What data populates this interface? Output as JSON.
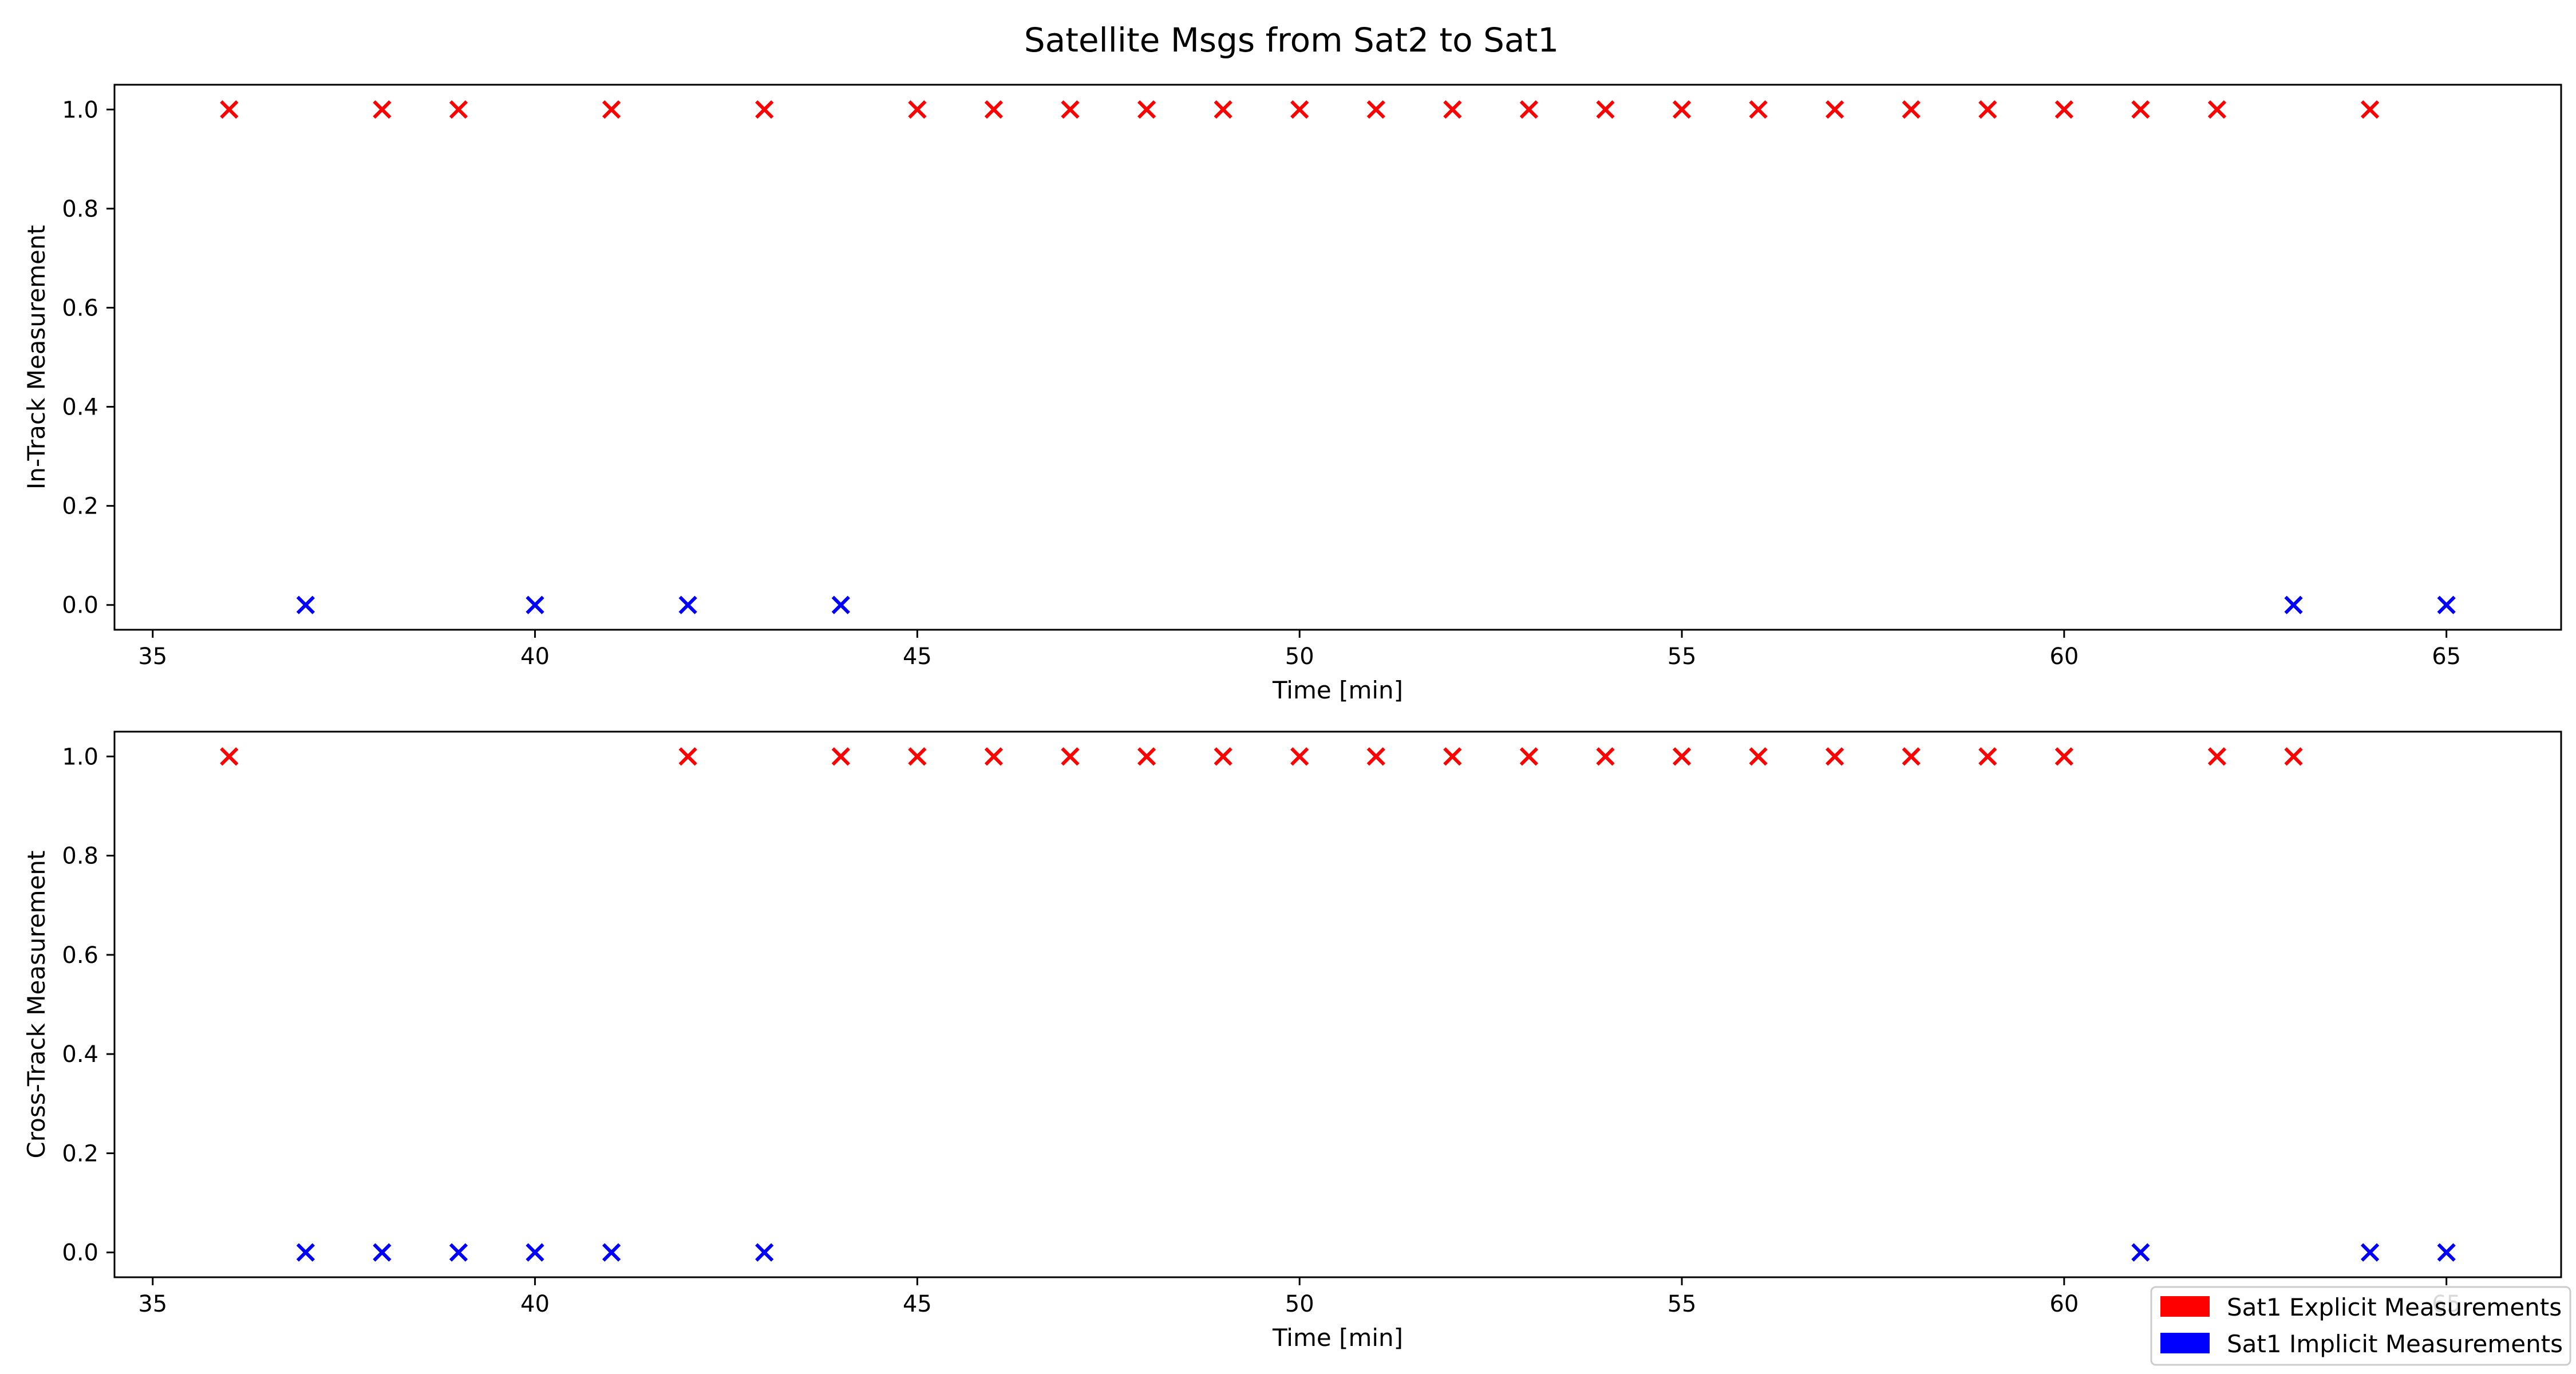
{
  "figure": {
    "title": "Satellite Msgs from Sat2 to Sat1"
  },
  "legend": {
    "placement": "bottom-right",
    "entries": [
      {
        "label": "Sat1 Explicit Measurements",
        "color": "#ff0000"
      },
      {
        "label": "Sat1 Implicit Measurements",
        "color": "#0000ff"
      }
    ]
  },
  "chart_data": [
    {
      "type": "scatter",
      "title": "",
      "xlabel": "Time [min]",
      "ylabel": "In-Track Measurement",
      "xlim": [
        34.5,
        66.5
      ],
      "ylim": [
        -0.05,
        1.05
      ],
      "xticks": [
        35,
        40,
        45,
        50,
        55,
        60,
        65
      ],
      "yticks": [
        0.0,
        0.2,
        0.4,
        0.6,
        0.8,
        1.0
      ],
      "ytick_labels": [
        "0.0",
        "0.2",
        "0.4",
        "0.6",
        "0.8",
        "1.0"
      ],
      "grid": false,
      "marker": "x",
      "series": [
        {
          "color": "#ff0000",
          "x": [
            36,
            38,
            39,
            41,
            43,
            45,
            46,
            47,
            48,
            49,
            50,
            51,
            52,
            53,
            54,
            55,
            56,
            57,
            58,
            59,
            60,
            61,
            62,
            64
          ],
          "y": [
            1,
            1,
            1,
            1,
            1,
            1,
            1,
            1,
            1,
            1,
            1,
            1,
            1,
            1,
            1,
            1,
            1,
            1,
            1,
            1,
            1,
            1,
            1,
            1
          ]
        },
        {
          "color": "#0000ff",
          "x": [
            37,
            40,
            42,
            44,
            63,
            65
          ],
          "y": [
            0,
            0,
            0,
            0,
            0,
            0
          ]
        }
      ]
    },
    {
      "type": "scatter",
      "title": "",
      "xlabel": "Time [min]",
      "ylabel": "Cross-Track Measurement",
      "xlim": [
        34.5,
        66.5
      ],
      "ylim": [
        -0.05,
        1.05
      ],
      "xticks": [
        35,
        40,
        45,
        50,
        55,
        60,
        65
      ],
      "yticks": [
        0.0,
        0.2,
        0.4,
        0.6,
        0.8,
        1.0
      ],
      "ytick_labels": [
        "0.0",
        "0.2",
        "0.4",
        "0.6",
        "0.8",
        "1.0"
      ],
      "grid": false,
      "marker": "x",
      "series": [
        {
          "color": "#ff0000",
          "x": [
            36,
            42,
            44,
            45,
            46,
            47,
            48,
            49,
            50,
            51,
            52,
            53,
            54,
            55,
            56,
            57,
            58,
            59,
            60,
            62,
            63
          ],
          "y": [
            1,
            1,
            1,
            1,
            1,
            1,
            1,
            1,
            1,
            1,
            1,
            1,
            1,
            1,
            1,
            1,
            1,
            1,
            1,
            1,
            1
          ]
        },
        {
          "color": "#0000ff",
          "x": [
            37,
            38,
            39,
            40,
            41,
            43,
            61,
            64,
            65
          ],
          "y": [
            0,
            0,
            0,
            0,
            0,
            0,
            0,
            0,
            0
          ]
        }
      ]
    }
  ]
}
